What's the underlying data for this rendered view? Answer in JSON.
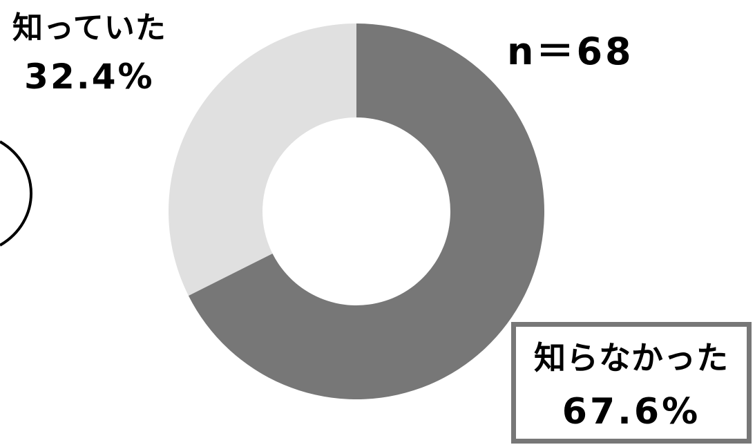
{
  "chart_data": {
    "type": "pie",
    "donut": true,
    "sample_size_label": "n＝68",
    "slices": [
      {
        "label": "知らなかった",
        "value": 67.6,
        "value_label": "67.6%",
        "color": "#777777"
      },
      {
        "label": "知っていた",
        "value": 32.4,
        "value_label": "32.4%",
        "color": "#e0e0e0"
      }
    ],
    "start_angle": "12 o'clock",
    "direction": "clockwise",
    "legend": "none"
  }
}
